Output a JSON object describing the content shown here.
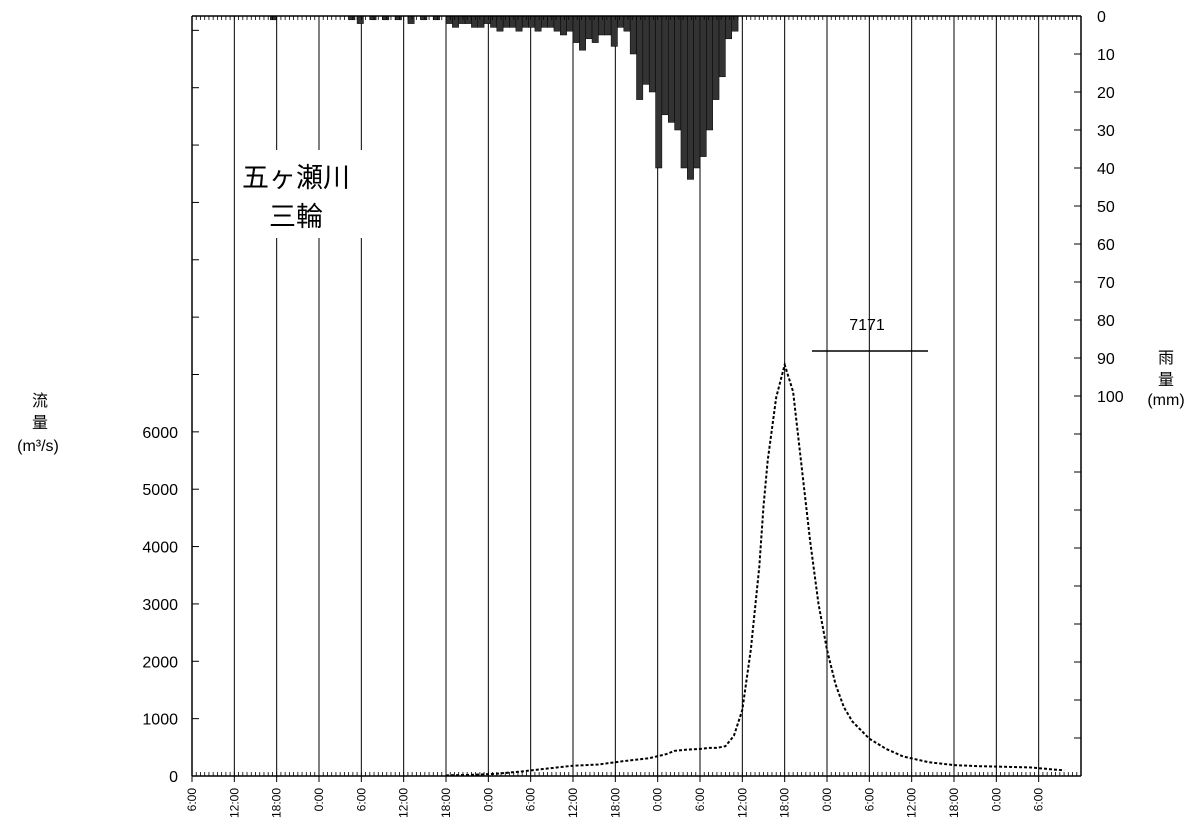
{
  "chart_data": {
    "type": "line",
    "title": [
      "五ヶ瀬川",
      "三輪"
    ],
    "x_tick_labels": [
      "6:00",
      "12:00",
      "18:00",
      "0:00",
      "6:00",
      "12:00",
      "18:00",
      "0:00",
      "6:00",
      "12:00",
      "18:00",
      "0:00",
      "6:00",
      "12:00",
      "18:00",
      "0:00",
      "6:00",
      "12:00",
      "18:00",
      "0:00",
      "6:00"
    ],
    "ylabel_left": [
      "流",
      "量"
    ],
    "ylabel_left_unit": "(m³/s)",
    "ylim_left": [
      0,
      13250
    ],
    "yticks_left": [
      0,
      1000,
      2000,
      3000,
      4000,
      5000,
      6000
    ],
    "ylabel_right": [
      "雨",
      "量"
    ],
    "ylabel_right_unit": "(mm)",
    "ylim_right": [
      0,
      200
    ],
    "yticks_right": [
      0,
      10,
      20,
      30,
      40,
      50,
      60,
      70,
      80,
      90,
      100
    ],
    "peak_label": "7171",
    "discharge": {
      "x_hours": [
        60,
        66,
        72,
        78,
        84,
        90,
        96,
        102,
        108,
        112,
        114,
        117,
        120,
        122,
        124,
        126,
        128,
        130,
        132,
        134,
        135,
        136,
        138,
        140,
        142,
        144,
        146,
        148,
        150,
        152,
        154,
        156,
        160,
        164,
        168,
        174,
        180,
        186,
        192,
        198,
        204,
        206
      ],
      "values": [
        10,
        20,
        40,
        80,
        130,
        180,
        200,
        260,
        310,
        380,
        440,
        460,
        470,
        490,
        490,
        520,
        700,
        1150,
        2200,
        3650,
        4700,
        5500,
        6600,
        7171,
        6700,
        5400,
        4100,
        3000,
        2200,
        1600,
        1200,
        950,
        650,
        470,
        340,
        240,
        190,
        170,
        160,
        150,
        110,
        100
      ],
      "style": "dotted",
      "color": "#000000"
    },
    "rainfall": {
      "x_start_hours": [
        18.5,
        37,
        39,
        42,
        45,
        48,
        51,
        54,
        57,
        60,
        61.5,
        63,
        64.5,
        66,
        67.5,
        69,
        70.5,
        72,
        73.5,
        75,
        76.5,
        78,
        79.5,
        81,
        82.5,
        84,
        85.5,
        87,
        88.5,
        90,
        91.5,
        93,
        94.5,
        96,
        97.5,
        99,
        100.5,
        102,
        103.5,
        105,
        106.5,
        108,
        109.5,
        111,
        112.5,
        114,
        115.5,
        117,
        118.5,
        120,
        121.5,
        123,
        124.5,
        126,
        127.5
      ],
      "values": [
        1,
        1,
        2,
        1,
        1,
        1,
        2,
        1,
        1,
        2,
        3,
        2,
        2,
        3,
        3,
        2,
        3,
        4,
        3,
        3,
        4,
        3,
        3,
        4,
        3,
        3,
        4,
        5,
        4,
        7,
        9,
        6,
        7,
        5,
        5,
        8,
        3,
        4,
        10,
        22,
        18,
        20,
        40,
        26,
        28,
        30,
        40,
        43,
        40,
        37,
        30,
        22,
        16,
        6,
        4
      ],
      "bar_width_hours": 1.5,
      "color": "#333333"
    }
  }
}
